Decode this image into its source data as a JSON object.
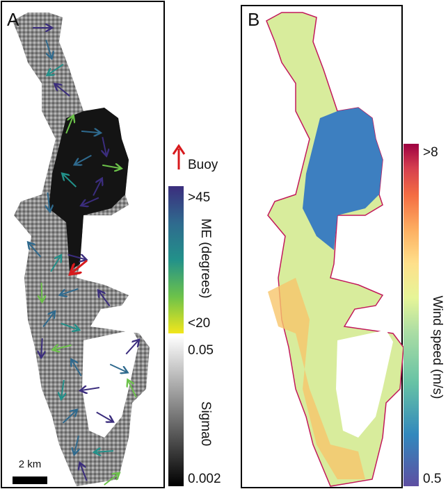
{
  "panels": {
    "a": {
      "label": "A",
      "legend": {
        "buoy": "Buoy",
        "me_top": ">45",
        "me_title": "ME (degrees)",
        "me_bottom": "<20",
        "sigma_top": "0.05",
        "sigma_title": "Sigma0",
        "sigma_bottom": "0.002"
      },
      "scale_bar": "2 km"
    },
    "b": {
      "label": "B",
      "legend": {
        "top": ">8",
        "title": "Wind speed (m/s)",
        "bottom": "0.5"
      }
    }
  }
}
